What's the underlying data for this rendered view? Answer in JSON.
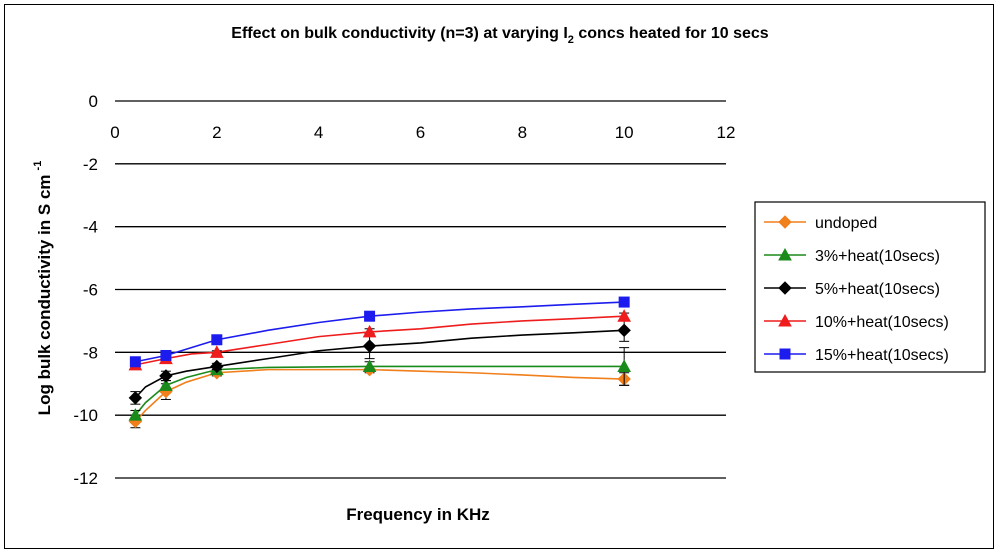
{
  "chart_data": {
    "type": "line",
    "title": "Effect on bulk conductivity (n=3) at varying I",
    "title_sub": "2",
    "title_rest": " concs heated for 10 secs",
    "xlabel": "Frequency in KHz",
    "ylabel": "Log bulk conductivity in S cm",
    "ylabel_sup": "-1",
    "xlim": [
      0,
      12
    ],
    "ylim": [
      -12,
      0
    ],
    "xticks": [
      "0",
      "2",
      "4",
      "6",
      "8",
      "10",
      "12"
    ],
    "yticks": [
      "0",
      "-2",
      "-4",
      "-6",
      "-8",
      "-10",
      "-12"
    ],
    "grid": true,
    "legend_position": "right",
    "series": [
      {
        "name": "undoped",
        "color": "#f07f1c",
        "marker": "diamond",
        "x": [
          0.4,
          1,
          2,
          5,
          10
        ],
        "y": [
          -10.2,
          -9.25,
          -8.65,
          -8.55,
          -8.85
        ],
        "err": [
          0.2,
          0.25,
          0.1,
          0.1,
          0.2
        ],
        "curve": [
          [
            0.4,
            -10.2
          ],
          [
            0.6,
            -9.85
          ],
          [
            1,
            -9.25
          ],
          [
            1.4,
            -8.95
          ],
          [
            2,
            -8.65
          ],
          [
            3,
            -8.55
          ],
          [
            4,
            -8.55
          ],
          [
            5,
            -8.55
          ],
          [
            6,
            -8.6
          ],
          [
            7,
            -8.65
          ],
          [
            8,
            -8.72
          ],
          [
            9,
            -8.8
          ],
          [
            10,
            -8.85
          ]
        ]
      },
      {
        "name": "3%+heat(10secs)",
        "color": "#1a8a1a",
        "marker": "triangle",
        "x": [
          0.4,
          1,
          2,
          5,
          10
        ],
        "y": [
          -10.0,
          -9.05,
          -8.55,
          -8.45,
          -8.45
        ],
        "err": [
          0.15,
          0.15,
          0.1,
          0.15,
          0.6
        ],
        "curve": [
          [
            0.4,
            -10.0
          ],
          [
            0.6,
            -9.6
          ],
          [
            1,
            -9.05
          ],
          [
            1.4,
            -8.8
          ],
          [
            2,
            -8.55
          ],
          [
            3,
            -8.48
          ],
          [
            5,
            -8.45
          ],
          [
            7,
            -8.45
          ],
          [
            10,
            -8.45
          ]
        ]
      },
      {
        "name": "5%+heat(10secs)",
        "color": "#000000",
        "marker": "diamond",
        "x": [
          0.4,
          1,
          2,
          5,
          10
        ],
        "y": [
          -9.45,
          -8.75,
          -8.45,
          -7.8,
          -7.3
        ],
        "err": [
          0.2,
          0.15,
          0.1,
          0.4,
          0.35
        ],
        "curve": [
          [
            0.4,
            -9.45
          ],
          [
            0.6,
            -9.1
          ],
          [
            1,
            -8.75
          ],
          [
            1.4,
            -8.6
          ],
          [
            2,
            -8.45
          ],
          [
            3,
            -8.2
          ],
          [
            4,
            -7.95
          ],
          [
            5,
            -7.8
          ],
          [
            6,
            -7.7
          ],
          [
            7,
            -7.55
          ],
          [
            8,
            -7.45
          ],
          [
            9,
            -7.38
          ],
          [
            10,
            -7.3
          ]
        ]
      },
      {
        "name": "10%+heat(10secs)",
        "color": "#ee1c1c",
        "marker": "triangle",
        "x": [
          0.4,
          1,
          2,
          5,
          10
        ],
        "y": [
          -8.4,
          -8.2,
          -8.0,
          -7.35,
          -6.85
        ],
        "err": [
          0.05,
          0.05,
          0.05,
          0.1,
          0.1
        ],
        "curve": [
          [
            0.4,
            -8.4
          ],
          [
            1,
            -8.2
          ],
          [
            1.5,
            -8.05
          ],
          [
            2,
            -8.0
          ],
          [
            3,
            -7.75
          ],
          [
            4,
            -7.5
          ],
          [
            5,
            -7.35
          ],
          [
            6,
            -7.25
          ],
          [
            7,
            -7.1
          ],
          [
            8,
            -7.0
          ],
          [
            9,
            -6.93
          ],
          [
            10,
            -6.85
          ]
        ]
      },
      {
        "name": "15%+heat(10secs)",
        "color": "#1c1cee",
        "marker": "square",
        "x": [
          0.4,
          1,
          2,
          5,
          10
        ],
        "y": [
          -8.3,
          -8.1,
          -7.6,
          -6.85,
          -6.4
        ],
        "err": [
          0.05,
          0.05,
          0.05,
          0.1,
          0.1
        ],
        "curve": [
          [
            0.4,
            -8.3
          ],
          [
            1,
            -8.1
          ],
          [
            1.5,
            -7.85
          ],
          [
            2,
            -7.6
          ],
          [
            3,
            -7.3
          ],
          [
            4,
            -7.05
          ],
          [
            5,
            -6.85
          ],
          [
            6,
            -6.72
          ],
          [
            7,
            -6.62
          ],
          [
            8,
            -6.55
          ],
          [
            9,
            -6.47
          ],
          [
            10,
            -6.4
          ]
        ]
      }
    ]
  }
}
